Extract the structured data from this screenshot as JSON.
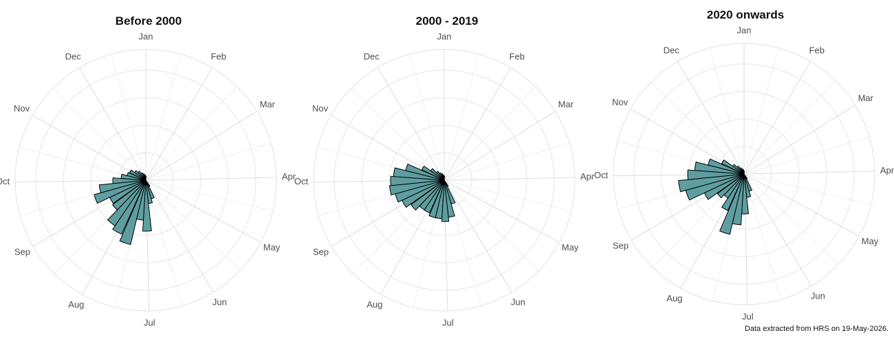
{
  "chart_data": [
    {
      "type": "polar-bar",
      "title": "Before 2000",
      "fill_color": "#5f9ea0",
      "edge_color": "#000000",
      "grid_color": "#e6e6e6",
      "grid": true,
      "month_labels": [
        "Jan",
        "Feb",
        "Mar",
        "Apr",
        "May",
        "Jun",
        "Jul",
        "Aug",
        "Sep",
        "Oct",
        "Nov",
        "Dec"
      ],
      "radial_ticks": [
        20,
        40,
        60,
        80
      ],
      "r_max": 95,
      "x": [
        "May 31",
        "Jun 10",
        "Jun 20",
        "Jun 30",
        "Jul 10",
        "Jul 20",
        "Jul 31",
        "Aug 10",
        "Aug 20",
        "Aug 31",
        "Sep 10",
        "Sep 20",
        "Sep 30",
        "Oct 10",
        "Oct 20",
        "Oct 31",
        "Nov 10",
        "Nov 20",
        "Nov 30",
        "Dec 10",
        "Dec 20",
        "Dec 31"
      ],
      "values": [
        5,
        14,
        17,
        37,
        29,
        48,
        43,
        40,
        30,
        29,
        39,
        34,
        24,
        18,
        14,
        13,
        10,
        8,
        6,
        5,
        4,
        3
      ]
    },
    {
      "type": "polar-bar",
      "title": "2000 - 2019",
      "fill_color": "#5f9ea0",
      "edge_color": "#000000",
      "grid_color": "#e6e6e6",
      "grid": true,
      "month_labels": [
        "Jan",
        "Feb",
        "Mar",
        "Apr",
        "May",
        "Jun",
        "Jul",
        "Aug",
        "Sep",
        "Oct",
        "Nov",
        "Dec"
      ],
      "radial_ticks": [
        20,
        40,
        60,
        80
      ],
      "r_max": 95,
      "x": [
        "May 31",
        "Jun 10",
        "Jun 20",
        "Jun 30",
        "Jul 10",
        "Jul 20",
        "Jul 31",
        "Aug 10",
        "Aug 20",
        "Aug 31",
        "Sep 10",
        "Sep 20",
        "Sep 30",
        "Oct 10",
        "Oct 20",
        "Oct 31",
        "Nov 10",
        "Nov 20",
        "Nov 30",
        "Dec 10",
        "Dec 20",
        "Dec 31"
      ],
      "values": [
        5,
        18,
        27,
        30,
        28,
        28,
        26,
        26,
        30,
        34,
        37,
        40,
        39,
        37,
        29,
        18,
        12,
        8,
        6,
        5,
        4,
        3
      ]
    },
    {
      "type": "polar-bar",
      "title": "2020 onwards",
      "fill_color": "#5f9ea0",
      "edge_color": "#000000",
      "grid_color": "#e6e6e6",
      "grid": true,
      "month_labels": [
        "Jan",
        "Feb",
        "Mar",
        "Apr",
        "May",
        "Jun",
        "Jul",
        "Aug",
        "Sep",
        "Oct",
        "Nov",
        "Dec"
      ],
      "radial_ticks": [
        20,
        40,
        60,
        80
      ],
      "r_max": 95,
      "x": [
        "May 31",
        "Jun 10",
        "Jun 20",
        "Jun 30",
        "Jul 10",
        "Jul 20",
        "Jul 31",
        "Aug 10",
        "Aug 20",
        "Aug 31",
        "Sep 10",
        "Sep 20",
        "Sep 30",
        "Oct 10",
        "Oct 20",
        "Oct 31",
        "Nov 10",
        "Nov 20",
        "Nov 30",
        "Dec 10",
        "Dec 20",
        "Dec 31"
      ],
      "values": [
        4,
        13,
        17,
        29,
        37,
        45,
        29,
        21,
        24,
        32,
        44,
        48,
        41,
        36,
        27,
        18,
        10,
        7,
        5,
        4,
        3,
        2
      ]
    }
  ],
  "footer": "Data extracted from HRS on 19-May-2026."
}
